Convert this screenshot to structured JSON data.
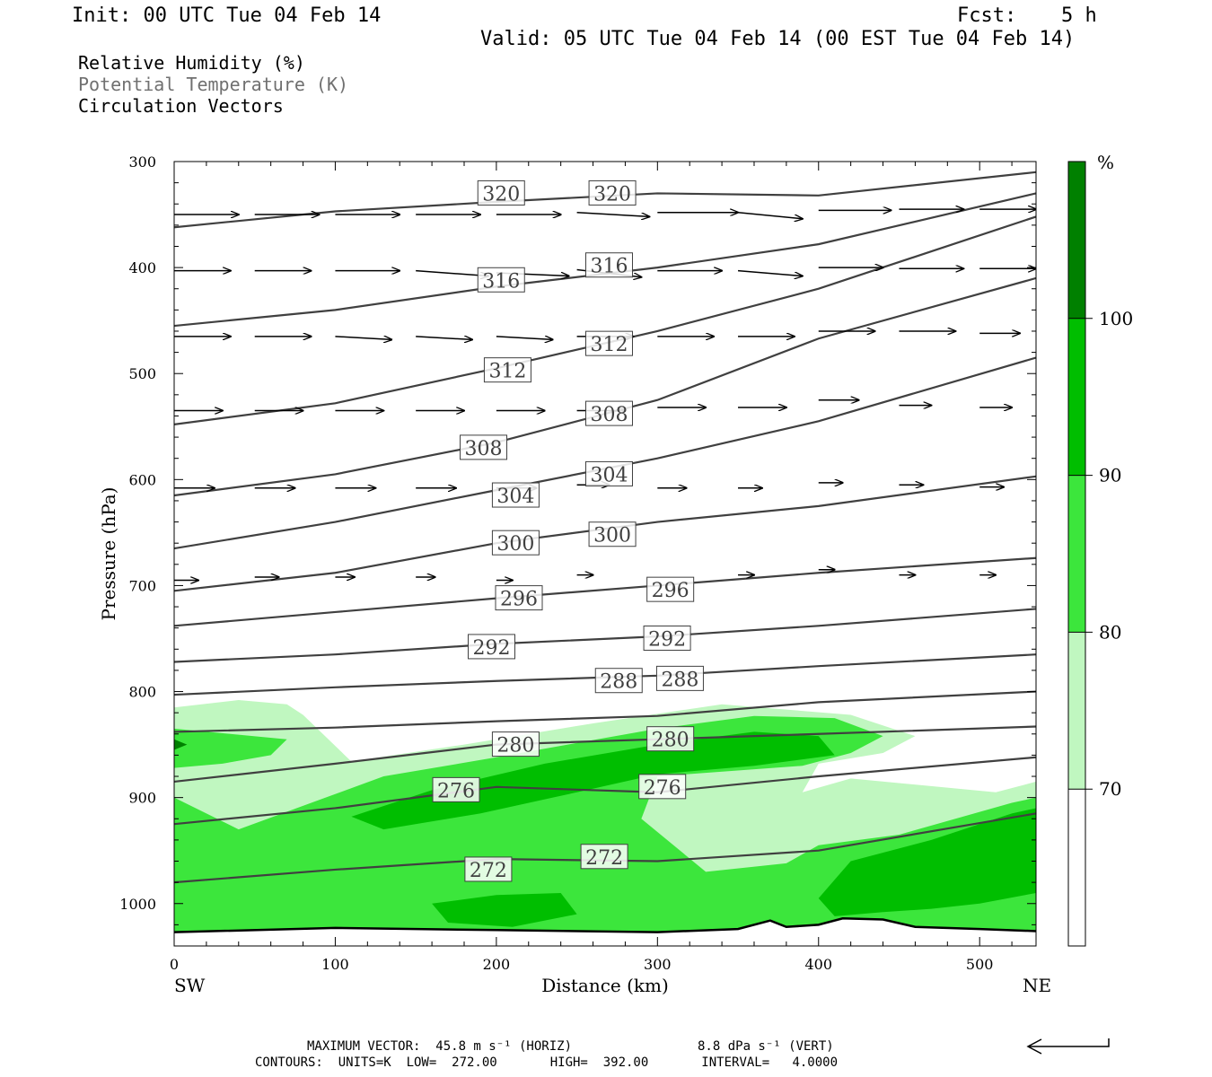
{
  "header": {
    "init": "Init: 00 UTC Tue 04 Feb 14",
    "fcst_label": "Fcst:",
    "fcst_value": "5 h",
    "valid": "Valid: 05 UTC Tue 04 Feb 14 (00 EST Tue 04 Feb 14)"
  },
  "fields": {
    "rh": "Relative Humidity (%)",
    "theta": "Potential Temperature (K)",
    "vectors": "Circulation Vectors"
  },
  "colors": {
    "rh70": "#c0f7c0",
    "rh80": "#3ce63c",
    "rh90": "#00be00",
    "rh100": "#008000",
    "contour": "#404040",
    "terrain": "#000000"
  },
  "chart_data": {
    "type": "cross-section",
    "xlabel": "Distance (km)",
    "ylabel": "Pressure (hPa)",
    "xlim": [
      0,
      535
    ],
    "ylim": [
      1040,
      300
    ],
    "y_scale": "linear pressure (inverted)",
    "x_ticks": [
      0,
      100,
      200,
      300,
      400,
      500
    ],
    "y_ticks": [
      300,
      400,
      500,
      600,
      700,
      800,
      900,
      1000
    ],
    "x_end_labels": {
      "left": "SW",
      "right": "NE"
    },
    "colorbar": {
      "unit": "%",
      "levels": [
        70,
        80,
        90,
        100
      ],
      "labels": [
        "70",
        "80",
        "90",
        "100"
      ],
      "colors": [
        "#ffffff",
        "#c0f7c0",
        "#3ce63c",
        "#00be00",
        "#008000"
      ]
    },
    "theta_contours": [
      {
        "level": 320,
        "points": [
          [
            0,
            362
          ],
          [
            100,
            347
          ],
          [
            200,
            338
          ],
          [
            300,
            330
          ],
          [
            400,
            332
          ],
          [
            535,
            310
          ]
        ]
      },
      {
        "level": 316,
        "points": [
          [
            0,
            455
          ],
          [
            100,
            440
          ],
          [
            200,
            418
          ],
          [
            300,
            400
          ],
          [
            400,
            378
          ],
          [
            535,
            330
          ]
        ]
      },
      {
        "level": 312,
        "points": [
          [
            0,
            548
          ],
          [
            100,
            528
          ],
          [
            200,
            495
          ],
          [
            300,
            460
          ],
          [
            400,
            420
          ],
          [
            535,
            352
          ]
        ]
      },
      {
        "level": 308,
        "points": [
          [
            0,
            615
          ],
          [
            100,
            595
          ],
          [
            200,
            565
          ],
          [
            300,
            525
          ],
          [
            400,
            467
          ],
          [
            535,
            410
          ]
        ]
      },
      {
        "level": 304,
        "points": [
          [
            0,
            665
          ],
          [
            100,
            640
          ],
          [
            200,
            610
          ],
          [
            300,
            580
          ],
          [
            400,
            545
          ],
          [
            535,
            485
          ]
        ]
      },
      {
        "level": 300,
        "points": [
          [
            0,
            705
          ],
          [
            100,
            688
          ],
          [
            200,
            660
          ],
          [
            300,
            640
          ],
          [
            400,
            625
          ],
          [
            535,
            597
          ]
        ]
      },
      {
        "level": 296,
        "points": [
          [
            0,
            738
          ],
          [
            100,
            725
          ],
          [
            200,
            712
          ],
          [
            300,
            700
          ],
          [
            400,
            688
          ],
          [
            535,
            674
          ]
        ]
      },
      {
        "level": 292,
        "points": [
          [
            0,
            772
          ],
          [
            100,
            765
          ],
          [
            200,
            755
          ],
          [
            300,
            748
          ],
          [
            400,
            738
          ],
          [
            535,
            722
          ]
        ]
      },
      {
        "level": 288,
        "points": [
          [
            0,
            803
          ],
          [
            100,
            796
          ],
          [
            200,
            790
          ],
          [
            300,
            785
          ],
          [
            400,
            776
          ],
          [
            535,
            765
          ]
        ]
      },
      {
        "level": 284,
        "points": [
          [
            0,
            838
          ],
          [
            100,
            834
          ],
          [
            200,
            828
          ],
          [
            300,
            823
          ],
          [
            400,
            810
          ],
          [
            535,
            800
          ]
        ]
      },
      {
        "level": 280,
        "points": [
          [
            0,
            885
          ],
          [
            100,
            868
          ],
          [
            200,
            850
          ],
          [
            300,
            845
          ],
          [
            400,
            840
          ],
          [
            535,
            833
          ]
        ]
      },
      {
        "level": 276,
        "points": [
          [
            0,
            925
          ],
          [
            100,
            910
          ],
          [
            200,
            890
          ],
          [
            300,
            895
          ],
          [
            400,
            880
          ],
          [
            535,
            862
          ]
        ]
      },
      {
        "level": 272,
        "points": [
          [
            0,
            980
          ],
          [
            100,
            968
          ],
          [
            200,
            958
          ],
          [
            300,
            960
          ],
          [
            400,
            950
          ],
          [
            535,
            915
          ]
        ]
      }
    ],
    "contour_labels": [
      {
        "text": "320",
        "x": 203,
        "p": 330
      },
      {
        "text": "320",
        "x": 272,
        "p": 330
      },
      {
        "text": "316",
        "x": 203,
        "p": 412
      },
      {
        "text": "316",
        "x": 270,
        "p": 398
      },
      {
        "text": "312",
        "x": 207,
        "p": 497
      },
      {
        "text": "312",
        "x": 270,
        "p": 472
      },
      {
        "text": "308",
        "x": 192,
        "p": 570
      },
      {
        "text": "308",
        "x": 270,
        "p": 538
      },
      {
        "text": "304",
        "x": 212,
        "p": 615
      },
      {
        "text": "304",
        "x": 270,
        "p": 595
      },
      {
        "text": "300",
        "x": 212,
        "p": 660
      },
      {
        "text": "300",
        "x": 272,
        "p": 652
      },
      {
        "text": "296",
        "x": 214,
        "p": 712
      },
      {
        "text": "296",
        "x": 308,
        "p": 704
      },
      {
        "text": "292",
        "x": 197,
        "p": 758
      },
      {
        "text": "292",
        "x": 306,
        "p": 750
      },
      {
        "text": "288",
        "x": 276,
        "p": 790
      },
      {
        "text": "288",
        "x": 314,
        "p": 788
      },
      {
        "text": "280",
        "x": 212,
        "p": 850
      },
      {
        "text": "280",
        "x": 308,
        "p": 845
      },
      {
        "text": "276",
        "x": 175,
        "p": 893
      },
      {
        "text": "276",
        "x": 303,
        "p": 890
      },
      {
        "text": "272",
        "x": 195,
        "p": 968
      },
      {
        "text": "272",
        "x": 267,
        "p": 956
      }
    ],
    "surface_pressure": [
      [
        0,
        1027
      ],
      [
        100,
        1023
      ],
      [
        200,
        1025
      ],
      [
        300,
        1027
      ],
      [
        350,
        1024
      ],
      [
        370,
        1016
      ],
      [
        380,
        1022
      ],
      [
        400,
        1020
      ],
      [
        415,
        1014
      ],
      [
        440,
        1015
      ],
      [
        460,
        1022
      ],
      [
        500,
        1024
      ],
      [
        535,
        1026
      ]
    ],
    "rh_regions": [
      {
        "level": 70,
        "points": [
          [
            0,
            815
          ],
          [
            40,
            808
          ],
          [
            70,
            812
          ],
          [
            80,
            822
          ],
          [
            110,
            866
          ],
          [
            180,
            850
          ],
          [
            260,
            830
          ],
          [
            340,
            812
          ],
          [
            420,
            822
          ],
          [
            460,
            842
          ],
          [
            440,
            858
          ],
          [
            400,
            868
          ],
          [
            390,
            895
          ],
          [
            420,
            882
          ],
          [
            510,
            895
          ],
          [
            535,
            885
          ],
          [
            535,
            1027
          ],
          [
            0,
            1027
          ]
        ]
      },
      {
        "level": 80,
        "points": [
          [
            0,
            835
          ],
          [
            70,
            845
          ],
          [
            60,
            860
          ],
          [
            30,
            868
          ],
          [
            0,
            872
          ]
        ]
      },
      {
        "level": 80,
        "points": [
          [
            40,
            930
          ],
          [
            130,
            880
          ],
          [
            200,
            862
          ],
          [
            300,
            835
          ],
          [
            360,
            823
          ],
          [
            410,
            825
          ],
          [
            440,
            842
          ],
          [
            420,
            858
          ],
          [
            390,
            870
          ],
          [
            300,
            880
          ],
          [
            290,
            920
          ],
          [
            330,
            970
          ],
          [
            380,
            962
          ],
          [
            400,
            945
          ],
          [
            450,
            935
          ],
          [
            520,
            905
          ],
          [
            535,
            900
          ],
          [
            535,
            1027
          ],
          [
            0,
            1027
          ],
          [
            0,
            900
          ]
        ]
      },
      {
        "level": 90,
        "points": [
          [
            110,
            918
          ],
          [
            160,
            893
          ],
          [
            230,
            868
          ],
          [
            300,
            850
          ],
          [
            360,
            838
          ],
          [
            400,
            842
          ],
          [
            410,
            860
          ],
          [
            360,
            870
          ],
          [
            300,
            878
          ],
          [
            250,
            895
          ],
          [
            190,
            915
          ],
          [
            130,
            930
          ]
        ]
      },
      {
        "level": 90,
        "points": [
          [
            160,
            1000
          ],
          [
            200,
            992
          ],
          [
            240,
            990
          ],
          [
            250,
            1010
          ],
          [
            210,
            1022
          ],
          [
            170,
            1018
          ]
        ]
      },
      {
        "level": 90,
        "points": [
          [
            400,
            995
          ],
          [
            420,
            960
          ],
          [
            470,
            940
          ],
          [
            520,
            915
          ],
          [
            535,
            910
          ],
          [
            535,
            990
          ],
          [
            500,
            1000
          ],
          [
            470,
            1005
          ],
          [
            440,
            1008
          ],
          [
            410,
            1012
          ]
        ]
      },
      {
        "level": 100,
        "points": [
          [
            0,
            845
          ],
          [
            8,
            850
          ],
          [
            0,
            855
          ]
        ]
      }
    ],
    "vectors": [
      {
        "x": 0,
        "p": 350,
        "dx": 40,
        "dp": 0
      },
      {
        "x": 50,
        "p": 350,
        "dx": 40,
        "dp": 0
      },
      {
        "x": 100,
        "p": 350,
        "dx": 40,
        "dp": 0
      },
      {
        "x": 150,
        "p": 350,
        "dx": 40,
        "dp": 0
      },
      {
        "x": 200,
        "p": 350,
        "dx": 40,
        "dp": 0
      },
      {
        "x": 250,
        "p": 348,
        "dx": 45,
        "dp": 4
      },
      {
        "x": 300,
        "p": 348,
        "dx": 50,
        "dp": 0
      },
      {
        "x": 350,
        "p": 348,
        "dx": 40,
        "dp": 6
      },
      {
        "x": 400,
        "p": 346,
        "dx": 45,
        "dp": 0
      },
      {
        "x": 450,
        "p": 345,
        "dx": 40,
        "dp": 0
      },
      {
        "x": 500,
        "p": 345,
        "dx": 35,
        "dp": 0
      },
      {
        "x": 0,
        "p": 403,
        "dx": 35,
        "dp": 0
      },
      {
        "x": 50,
        "p": 403,
        "dx": 35,
        "dp": 0
      },
      {
        "x": 100,
        "p": 403,
        "dx": 40,
        "dp": 0
      },
      {
        "x": 150,
        "p": 403,
        "dx": 45,
        "dp": 5
      },
      {
        "x": 200,
        "p": 405,
        "dx": 45,
        "dp": 3
      },
      {
        "x": 250,
        "p": 402,
        "dx": 40,
        "dp": 7
      },
      {
        "x": 300,
        "p": 403,
        "dx": 40,
        "dp": 0
      },
      {
        "x": 350,
        "p": 403,
        "dx": 40,
        "dp": 5
      },
      {
        "x": 400,
        "p": 400,
        "dx": 40,
        "dp": 0
      },
      {
        "x": 450,
        "p": 401,
        "dx": 40,
        "dp": 0
      },
      {
        "x": 500,
        "p": 401,
        "dx": 35,
        "dp": 0
      },
      {
        "x": 0,
        "p": 465,
        "dx": 35,
        "dp": 0
      },
      {
        "x": 50,
        "p": 465,
        "dx": 35,
        "dp": 0
      },
      {
        "x": 100,
        "p": 465,
        "dx": 35,
        "dp": 3
      },
      {
        "x": 150,
        "p": 465,
        "dx": 35,
        "dp": 3
      },
      {
        "x": 200,
        "p": 465,
        "dx": 35,
        "dp": 3
      },
      {
        "x": 250,
        "p": 465,
        "dx": 35,
        "dp": 0
      },
      {
        "x": 300,
        "p": 465,
        "dx": 35,
        "dp": 0
      },
      {
        "x": 350,
        "p": 465,
        "dx": 35,
        "dp": 0
      },
      {
        "x": 400,
        "p": 460,
        "dx": 35,
        "dp": 0
      },
      {
        "x": 450,
        "p": 460,
        "dx": 35,
        "dp": 0
      },
      {
        "x": 500,
        "p": 462,
        "dx": 25,
        "dp": 0
      },
      {
        "x": 0,
        "p": 535,
        "dx": 30,
        "dp": 0
      },
      {
        "x": 50,
        "p": 535,
        "dx": 30,
        "dp": 0
      },
      {
        "x": 100,
        "p": 535,
        "dx": 30,
        "dp": 0
      },
      {
        "x": 150,
        "p": 535,
        "dx": 30,
        "dp": 0
      },
      {
        "x": 200,
        "p": 535,
        "dx": 30,
        "dp": 0
      },
      {
        "x": 250,
        "p": 535,
        "dx": 30,
        "dp": 0
      },
      {
        "x": 300,
        "p": 532,
        "dx": 30,
        "dp": 0
      },
      {
        "x": 350,
        "p": 532,
        "dx": 30,
        "dp": 0
      },
      {
        "x": 400,
        "p": 525,
        "dx": 25,
        "dp": 0
      },
      {
        "x": 450,
        "p": 530,
        "dx": 20,
        "dp": 0
      },
      {
        "x": 500,
        "p": 532,
        "dx": 20,
        "dp": 0
      },
      {
        "x": 0,
        "p": 608,
        "dx": 25,
        "dp": 0
      },
      {
        "x": 50,
        "p": 608,
        "dx": 25,
        "dp": 0
      },
      {
        "x": 100,
        "p": 608,
        "dx": 25,
        "dp": 0
      },
      {
        "x": 150,
        "p": 608,
        "dx": 25,
        "dp": 0
      },
      {
        "x": 200,
        "p": 608,
        "dx": 25,
        "dp": 0
      },
      {
        "x": 250,
        "p": 605,
        "dx": 20,
        "dp": 0
      },
      {
        "x": 300,
        "p": 608,
        "dx": 18,
        "dp": 0
      },
      {
        "x": 350,
        "p": 608,
        "dx": 15,
        "dp": 0
      },
      {
        "x": 400,
        "p": 603,
        "dx": 15,
        "dp": 0
      },
      {
        "x": 450,
        "p": 605,
        "dx": 15,
        "dp": 0
      },
      {
        "x": 500,
        "p": 607,
        "dx": 15,
        "dp": 0
      },
      {
        "x": 0,
        "p": 695,
        "dx": 15,
        "dp": 0
      },
      {
        "x": 50,
        "p": 692,
        "dx": 15,
        "dp": 0
      },
      {
        "x": 100,
        "p": 692,
        "dx": 12,
        "dp": 0
      },
      {
        "x": 150,
        "p": 692,
        "dx": 12,
        "dp": 0
      },
      {
        "x": 200,
        "p": 695,
        "dx": 10,
        "dp": 0
      },
      {
        "x": 250,
        "p": 690,
        "dx": 10,
        "dp": 0
      },
      {
        "x": 350,
        "p": 690,
        "dx": 10,
        "dp": 0
      },
      {
        "x": 400,
        "p": 685,
        "dx": 10,
        "dp": 0
      },
      {
        "x": 450,
        "p": 690,
        "dx": 10,
        "dp": 0
      },
      {
        "x": 500,
        "p": 690,
        "dx": 10,
        "dp": 0
      }
    ],
    "annotations": {
      "max_vector": "MAXIMUM VECTOR:  45.8 m s⁻¹ (HORIZ)",
      "max_vector_vert": "8.8 dPa s⁻¹ (VERT)",
      "contours": "CONTOURS:  UNITS=K  LOW=  272.00       HIGH=  392.00       INTERVAL=   4.0000"
    }
  }
}
